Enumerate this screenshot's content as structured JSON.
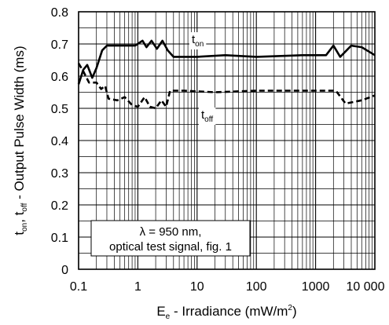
{
  "chart_data": {
    "type": "line",
    "xscale": "log",
    "xlim": [
      0.1,
      10000
    ],
    "ylim": [
      0,
      0.8
    ],
    "grid": true,
    "xticks": [
      {
        "value": 0.1,
        "label": "0.1"
      },
      {
        "value": 1,
        "label": "1"
      },
      {
        "value": 10,
        "label": "10"
      },
      {
        "value": 100,
        "label": "100"
      },
      {
        "value": 1000,
        "label": "1000"
      },
      {
        "value": 10000,
        "label": "10 000"
      }
    ],
    "yticks": [
      {
        "value": 0,
        "label": "0"
      },
      {
        "value": 0.1,
        "label": "0.1"
      },
      {
        "value": 0.2,
        "label": "0.2"
      },
      {
        "value": 0.3,
        "label": "0.3"
      },
      {
        "value": 0.4,
        "label": "0.4"
      },
      {
        "value": 0.5,
        "label": "0.5"
      },
      {
        "value": 0.6,
        "label": "0.6"
      },
      {
        "value": 0.7,
        "label": "0.7"
      },
      {
        "value": 0.8,
        "label": "0.8"
      }
    ],
    "xlabel": {
      "main": "E",
      "sub": "e",
      "rest": " - Irradiance (mW/m",
      "sup": "2",
      "end": ")"
    },
    "ylabel": {
      "p1": "t",
      "s1": "on",
      "p2": ", t",
      "s2": "off",
      "p3": " - Output Pulse Width (ms)"
    },
    "annotation": {
      "line1": "λ = 950 nm,",
      "line2": "optical test signal, fig. 1"
    },
    "series": [
      {
        "label_main": "t",
        "label_sub": "on",
        "style": "solid",
        "points": [
          [
            0.1,
            0.575
          ],
          [
            0.12,
            0.62
          ],
          [
            0.14,
            0.635
          ],
          [
            0.17,
            0.595
          ],
          [
            0.2,
            0.625
          ],
          [
            0.25,
            0.68
          ],
          [
            0.3,
            0.695
          ],
          [
            0.4,
            0.695
          ],
          [
            0.6,
            0.695
          ],
          [
            0.9,
            0.695
          ],
          [
            1.2,
            0.71
          ],
          [
            1.4,
            0.69
          ],
          [
            1.7,
            0.71
          ],
          [
            2.1,
            0.685
          ],
          [
            2.6,
            0.71
          ],
          [
            3.2,
            0.68
          ],
          [
            4,
            0.66
          ],
          [
            10,
            0.66
          ],
          [
            30,
            0.665
          ],
          [
            100,
            0.66
          ],
          [
            600,
            0.665
          ],
          [
            1500,
            0.665
          ],
          [
            2000,
            0.695
          ],
          [
            2600,
            0.66
          ],
          [
            4000,
            0.695
          ],
          [
            6000,
            0.69
          ],
          [
            10000,
            0.665
          ]
        ]
      },
      {
        "label_main": "t",
        "label_sub": "off",
        "style": "dashed",
        "points": [
          [
            0.1,
            0.64
          ],
          [
            0.12,
            0.615
          ],
          [
            0.15,
            0.58
          ],
          [
            0.2,
            0.58
          ],
          [
            0.24,
            0.56
          ],
          [
            0.28,
            0.57
          ],
          [
            0.32,
            0.53
          ],
          [
            0.45,
            0.525
          ],
          [
            0.6,
            0.535
          ],
          [
            0.8,
            0.51
          ],
          [
            1,
            0.505
          ],
          [
            1.3,
            0.535
          ],
          [
            1.6,
            0.505
          ],
          [
            2,
            0.5
          ],
          [
            2.5,
            0.525
          ],
          [
            3,
            0.505
          ],
          [
            3.5,
            0.555
          ],
          [
            6,
            0.555
          ],
          [
            20,
            0.55
          ],
          [
            100,
            0.555
          ],
          [
            800,
            0.555
          ],
          [
            2200,
            0.555
          ],
          [
            3200,
            0.515
          ],
          [
            6000,
            0.525
          ],
          [
            10000,
            0.54
          ]
        ]
      }
    ]
  }
}
